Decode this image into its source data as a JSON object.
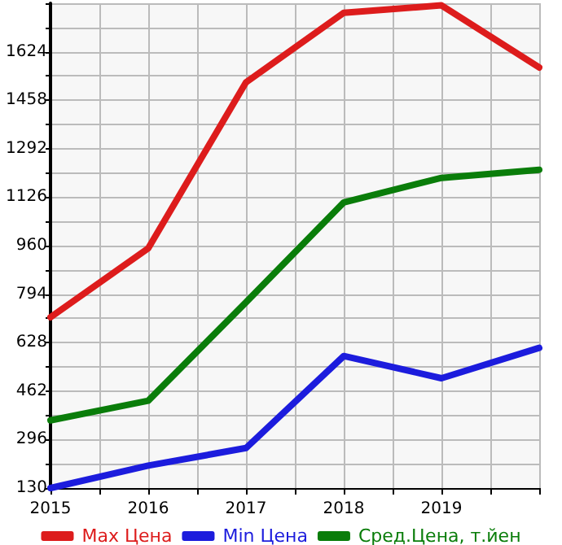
{
  "chart_data": {
    "type": "line",
    "x": [
      2015,
      2016,
      2017,
      2018,
      2019,
      2020
    ],
    "series": [
      {
        "name": "Max Цена",
        "color": "#dd1c1c",
        "values": [
          715,
          951,
          1519,
          1757,
          1783,
          1570
        ]
      },
      {
        "name": "Min Цена",
        "color": "#1c1cdd",
        "values": [
          130,
          207,
          267,
          582,
          506,
          610
        ]
      },
      {
        "name": "Сред.Цена, т.йен",
        "color": "#0a7d0a",
        "values": [
          362,
          429,
          766,
          1108,
          1192,
          1220
        ]
      }
    ],
    "xlim": [
      2015,
      2020
    ],
    "xticks": [
      2015,
      {
        "value": 2015.5,
        "label": null
      },
      2016,
      {
        "value": 2016.5,
        "label": null
      },
      2017,
      {
        "value": 2017.5,
        "label": null
      },
      2018,
      {
        "value": 2018.5,
        "label": null
      },
      2019,
      {
        "value": 2019.5,
        "label": null
      },
      {
        "value": 2020,
        "label": null
      }
    ],
    "ylim": [
      130,
      1790
    ],
    "yticks": [
      130,
      {
        "value": 213,
        "label": null
      },
      296,
      {
        "value": 379,
        "label": null
      },
      462,
      {
        "value": 545,
        "label": null
      },
      628,
      {
        "value": 711,
        "label": null
      },
      794,
      {
        "value": 877,
        "label": null
      },
      960,
      {
        "value": 1043,
        "label": null
      },
      1126,
      {
        "value": 1209,
        "label": null
      },
      1292,
      {
        "value": 1375,
        "label": null
      },
      1458,
      {
        "value": 1541,
        "label": null
      },
      1624,
      {
        "value": 1707,
        "label": null
      },
      {
        "value": 1790,
        "label": null
      }
    ],
    "grid": true,
    "legend": "bottom",
    "marker": "none",
    "line_style": "solid"
  }
}
